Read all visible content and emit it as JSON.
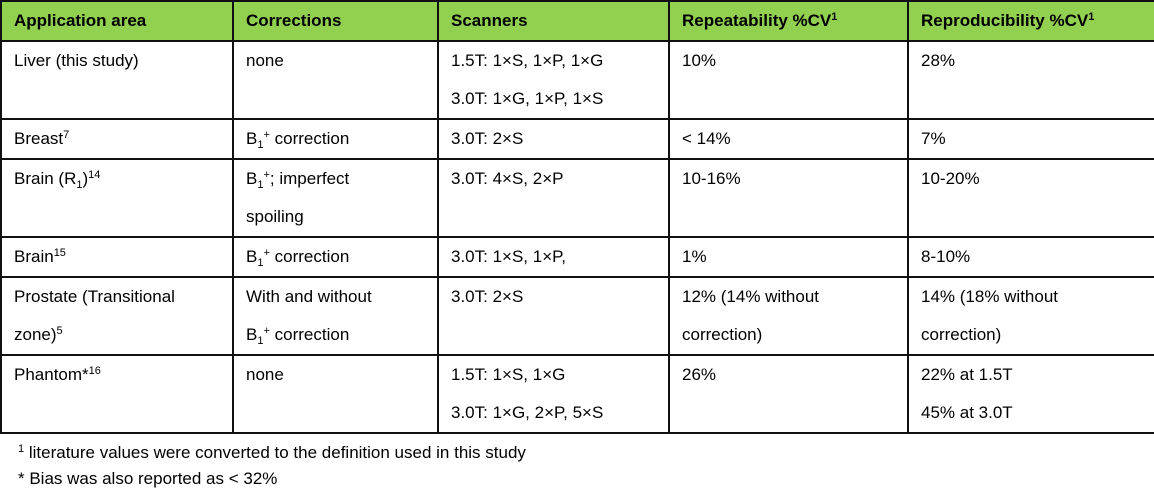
{
  "accent_color": "#92D050",
  "table": {
    "headers": [
      [
        {
          "t": "Application area"
        }
      ],
      [
        {
          "t": "Corrections"
        }
      ],
      [
        {
          "t": "Scanners"
        }
      ],
      [
        {
          "t": "Repeatability %CV"
        },
        {
          "t": "1",
          "s": "sup"
        }
      ],
      [
        {
          "t": "Reproducibility %CV"
        },
        {
          "t": "1",
          "s": "sup"
        }
      ]
    ],
    "rows": [
      {
        "cells": [
          [
            [
              {
                "t": "Liver (this study)"
              }
            ]
          ],
          [
            [
              {
                "t": "none"
              }
            ]
          ],
          [
            [
              {
                "t": "1.5T: 1×S, 1×P, 1×G"
              }
            ],
            [
              {
                "t": "3.0T: 1×G, 1×P, 1×S"
              }
            ]
          ],
          [
            [
              {
                "t": "10%"
              }
            ]
          ],
          [
            [
              {
                "t": "28%"
              }
            ]
          ]
        ]
      },
      {
        "cells": [
          [
            [
              {
                "t": "Breast"
              },
              {
                "t": "7",
                "s": "sup"
              }
            ]
          ],
          [
            [
              {
                "t": "B"
              },
              {
                "t": "1",
                "s": "sub"
              },
              {
                "t": "+",
                "s": "sup"
              },
              {
                "t": " correction"
              }
            ]
          ],
          [
            [
              {
                "t": "3.0T: 2×S"
              }
            ]
          ],
          [
            [
              {
                "t": "< 14%"
              }
            ]
          ],
          [
            [
              {
                "t": "7%"
              }
            ]
          ]
        ]
      },
      {
        "cells": [
          [
            [
              {
                "t": "Brain (R"
              },
              {
                "t": "1",
                "s": "sub"
              },
              {
                "t": ")"
              },
              {
                "t": "14",
                "s": "sup"
              }
            ]
          ],
          [
            [
              {
                "t": "B"
              },
              {
                "t": "1",
                "s": "sub"
              },
              {
                "t": "+",
                "s": "sup"
              },
              {
                "t": "; imperfect"
              }
            ],
            [
              {
                "t": "spoiling"
              }
            ]
          ],
          [
            [
              {
                "t": "3.0T: 4×S, 2×P"
              }
            ]
          ],
          [
            [
              {
                "t": "10-16%"
              }
            ]
          ],
          [
            [
              {
                "t": "10-20%"
              }
            ]
          ]
        ]
      },
      {
        "cells": [
          [
            [
              {
                "t": "Brain"
              },
              {
                "t": "15",
                "s": "sup"
              }
            ]
          ],
          [
            [
              {
                "t": "B"
              },
              {
                "t": "1",
                "s": "sub"
              },
              {
                "t": "+",
                "s": "sup"
              },
              {
                "t": " correction"
              }
            ]
          ],
          [
            [
              {
                "t": "3.0T: 1×S, 1×P,"
              }
            ]
          ],
          [
            [
              {
                "t": "1%"
              }
            ]
          ],
          [
            [
              {
                "t": "8-10%"
              }
            ]
          ]
        ]
      },
      {
        "cells": [
          [
            [
              {
                "t": "Prostate (Transitional"
              }
            ],
            [
              {
                "t": "zone)"
              },
              {
                "t": "5",
                "s": "sup"
              }
            ]
          ],
          [
            [
              {
                "t": "With and without"
              }
            ],
            [
              {
                "t": "B"
              },
              {
                "t": "1",
                "s": "sub"
              },
              {
                "t": "+",
                "s": "sup"
              },
              {
                "t": " correction"
              }
            ]
          ],
          [
            [
              {
                "t": "3.0T: 2×S"
              }
            ]
          ],
          [
            [
              {
                "t": "12% (14% without"
              }
            ],
            [
              {
                "t": "correction)"
              }
            ]
          ],
          [
            [
              {
                "t": "14% (18% without"
              }
            ],
            [
              {
                "t": "correction)"
              }
            ]
          ]
        ]
      },
      {
        "cells": [
          [
            [
              {
                "t": "Phantom*"
              },
              {
                "t": "16",
                "s": "sup"
              }
            ]
          ],
          [
            [
              {
                "t": "none"
              }
            ]
          ],
          [
            [
              {
                "t": "1.5T: 1×S, 1×G"
              }
            ],
            [
              {
                "t": "3.0T: 1×G, 2×P, 5×S"
              }
            ]
          ],
          [
            [
              {
                "t": "26%"
              }
            ]
          ],
          [
            [
              {
                "t": "22% at 1.5T"
              }
            ],
            [
              {
                "t": "45% at 3.0T"
              }
            ]
          ]
        ]
      }
    ]
  },
  "footnotes": [
    {
      "mark": "1",
      "text": " literature values were converted to the definition used in this study"
    },
    {
      "mark": "*",
      "text": " Bias was also reported as < 32%"
    }
  ]
}
